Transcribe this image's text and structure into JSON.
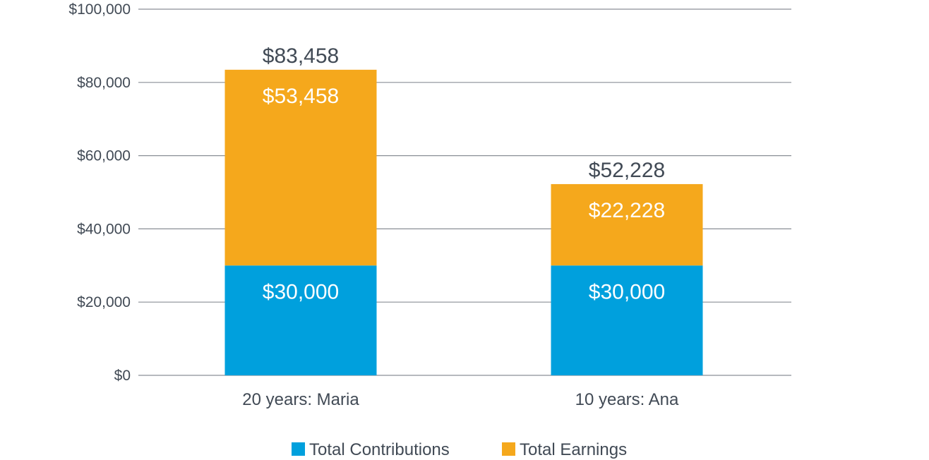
{
  "chart_data": {
    "type": "bar",
    "stacked": true,
    "categories": [
      "20 years: Maria",
      "10 years: Ana"
    ],
    "series": [
      {
        "name": "Total Contributions",
        "color": "#00a0dd",
        "values": [
          30000,
          30000
        ],
        "labels": [
          "$30,000",
          "$30,000"
        ]
      },
      {
        "name": "Total Earnings",
        "color": "#f5a81c",
        "values": [
          53458,
          22228
        ],
        "labels": [
          "$53,458",
          "$22,228"
        ]
      }
    ],
    "totals": [
      83458,
      52228
    ],
    "total_labels": [
      "$83,458",
      "$52,228"
    ],
    "ylim": [
      0,
      100000
    ],
    "y_ticks": [
      0,
      20000,
      40000,
      60000,
      80000,
      100000
    ],
    "y_tick_labels": [
      "$0",
      "$20,000",
      "$40,000",
      "$60,000",
      "$80,000",
      "$100,000"
    ],
    "grid": true,
    "legend_position": "bottom",
    "title": "",
    "xlabel": "",
    "ylabel": ""
  }
}
